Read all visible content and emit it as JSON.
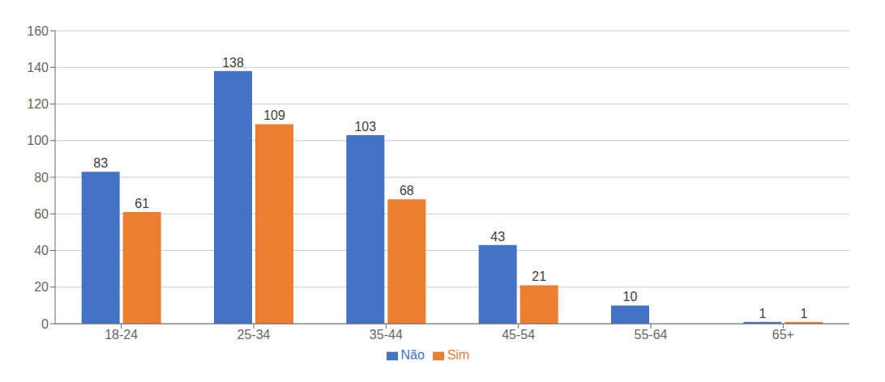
{
  "chart_data": {
    "type": "bar",
    "categories": [
      "18-24",
      "25-34",
      "35-44",
      "45-54",
      "55-64",
      "65+"
    ],
    "series": [
      {
        "name": "Não",
        "color": "#4472C4",
        "values": [
          83,
          138,
          103,
          43,
          10,
          1
        ]
      },
      {
        "name": "Sim",
        "color": "#ED7D31",
        "values": [
          61,
          109,
          68,
          21,
          0,
          1
        ]
      }
    ],
    "ylim": [
      0,
      160
    ],
    "yticks": [
      0,
      20,
      40,
      60,
      80,
      100,
      120,
      140,
      160
    ],
    "grid": true,
    "legend": "bottom",
    "data_labels": true
  }
}
